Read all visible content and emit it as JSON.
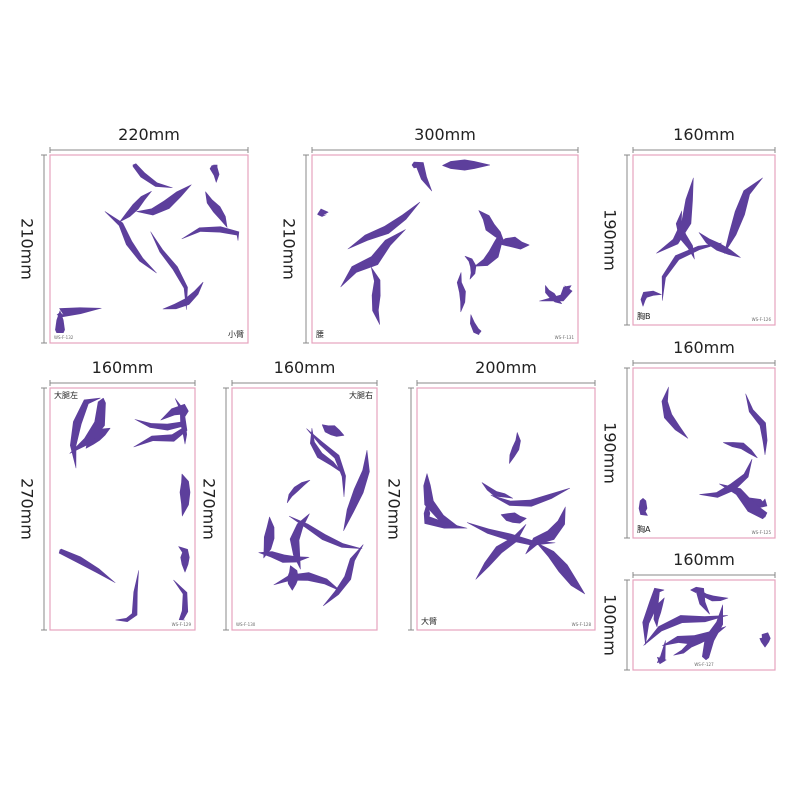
{
  "panels": [
    {
      "width_label": "220mm",
      "height_label": "210mm",
      "name": "小臂",
      "code": "WS-F-132"
    },
    {
      "width_label": "300mm",
      "height_label": "210mm",
      "name": "腰",
      "code": "WS-F-131"
    },
    {
      "width_label": "160mm",
      "height_label": "190mm",
      "name": "胸B",
      "code": "WS-F-126"
    },
    {
      "width_label": "160mm",
      "height_label": "270mm",
      "name": "大腿左",
      "code": "WS-F-129"
    },
    {
      "width_label": "160mm",
      "height_label": "270mm",
      "name": "大腿右",
      "code": "WS-F-130"
    },
    {
      "width_label": "200mm",
      "height_label": "270mm",
      "name": "大臂",
      "code": "WS-F-128"
    },
    {
      "width_label": "160mm",
      "height_label": "190mm",
      "name": "胸A",
      "code": "WS-F-125"
    },
    {
      "width_label": "160mm",
      "height_label": "100mm",
      "code": "WS-F-127"
    }
  ]
}
